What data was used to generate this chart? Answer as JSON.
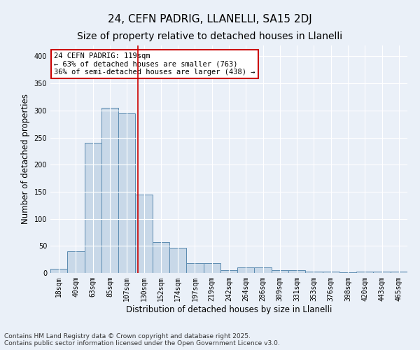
{
  "title": "24, CEFN PADRIG, LLANELLI, SA15 2DJ",
  "subtitle": "Size of property relative to detached houses in Llanelli",
  "xlabel": "Distribution of detached houses by size in Llanelli",
  "ylabel": "Number of detached properties",
  "bar_color": "#c8d8e8",
  "bar_edge_color": "#5a8ab0",
  "background_color": "#eaf0f8",
  "grid_color": "#ffffff",
  "bin_labels": [
    "18sqm",
    "40sqm",
    "63sqm",
    "85sqm",
    "107sqm",
    "130sqm",
    "152sqm",
    "174sqm",
    "197sqm",
    "219sqm",
    "242sqm",
    "264sqm",
    "286sqm",
    "309sqm",
    "331sqm",
    "353sqm",
    "376sqm",
    "398sqm",
    "420sqm",
    "443sqm",
    "465sqm"
  ],
  "bar_heights": [
    8,
    40,
    240,
    305,
    295,
    145,
    57,
    47,
    18,
    18,
    5,
    10,
    10,
    5,
    5,
    3,
    2,
    1,
    2,
    3,
    2
  ],
  "ylim": [
    0,
    420
  ],
  "yticks": [
    0,
    50,
    100,
    150,
    200,
    250,
    300,
    350,
    400
  ],
  "annotation_text": "24 CEFN PADRIG: 119sqm\n← 63% of detached houses are smaller (763)\n36% of semi-detached houses are larger (438) →",
  "vline_x": 4.65,
  "vline_color": "#cc0000",
  "annotation_box_color": "#ffffff",
  "annotation_box_edgecolor": "#cc0000",
  "footer_text": "Contains HM Land Registry data © Crown copyright and database right 2025.\nContains public sector information licensed under the Open Government Licence v3.0.",
  "title_fontsize": 11,
  "subtitle_fontsize": 10,
  "label_fontsize": 8.5,
  "tick_fontsize": 7,
  "annotation_fontsize": 7.5,
  "footer_fontsize": 6.5
}
